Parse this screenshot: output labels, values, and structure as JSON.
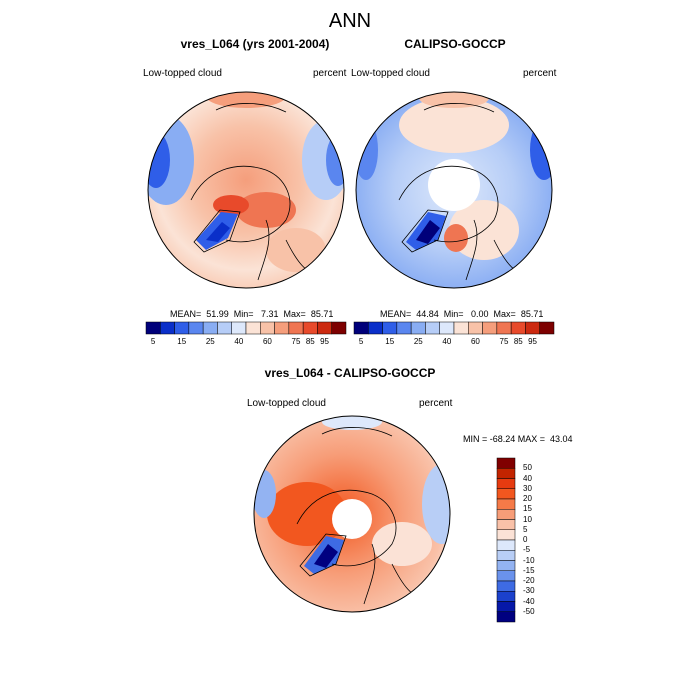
{
  "title": "ANN",
  "panels": {
    "left": {
      "title": "vres_L064 (yrs 2001-2004)",
      "variable": "Low-topped cloud",
      "units": "percent",
      "stats": "MEAN=  51.99  Min=   7.31  Max=  85.71"
    },
    "right": {
      "title": "CALIPSO-GOCCP",
      "variable": "Low-topped cloud",
      "units": "percent",
      "stats": "MEAN=  44.84  Min=   0.00  Max=  85.71"
    },
    "diff": {
      "title": "vres_L064 - CALIPSO-GOCCP",
      "variable": "Low-topped cloud",
      "units": "percent",
      "minmax": "MIN = -68.24 MAX =  43.04"
    }
  },
  "colorbar_abs": {
    "tick_labels": [
      "5",
      "15",
      "25",
      "40",
      "60",
      "75",
      "85",
      "95"
    ],
    "colors": [
      "#00007a",
      "#0a2fc9",
      "#2f5ee8",
      "#5a86ef",
      "#89adf3",
      "#b6cdf7",
      "#dde8fb",
      "#fbe3d6",
      "#f8c2a8",
      "#f59e7c",
      "#ef7552",
      "#e84a2b",
      "#cc2a10",
      "#7d0000"
    ]
  },
  "colorbar_diff": {
    "tick_labels": [
      "50",
      "40",
      "30",
      "20",
      "15",
      "10",
      "5",
      "0",
      "-5",
      "-10",
      "-15",
      "-20",
      "-30",
      "-40",
      "-50"
    ],
    "colors": [
      "#800000",
      "#c22400",
      "#e63b10",
      "#f2571f",
      "#f57a48",
      "#f79d78",
      "#f9c1a8",
      "#fbe2d6",
      "#dde8fb",
      "#b8cef6",
      "#93b3f2",
      "#6a92ec",
      "#3e6be3",
      "#1b41cc",
      "#0618a8",
      "#000080"
    ]
  }
}
